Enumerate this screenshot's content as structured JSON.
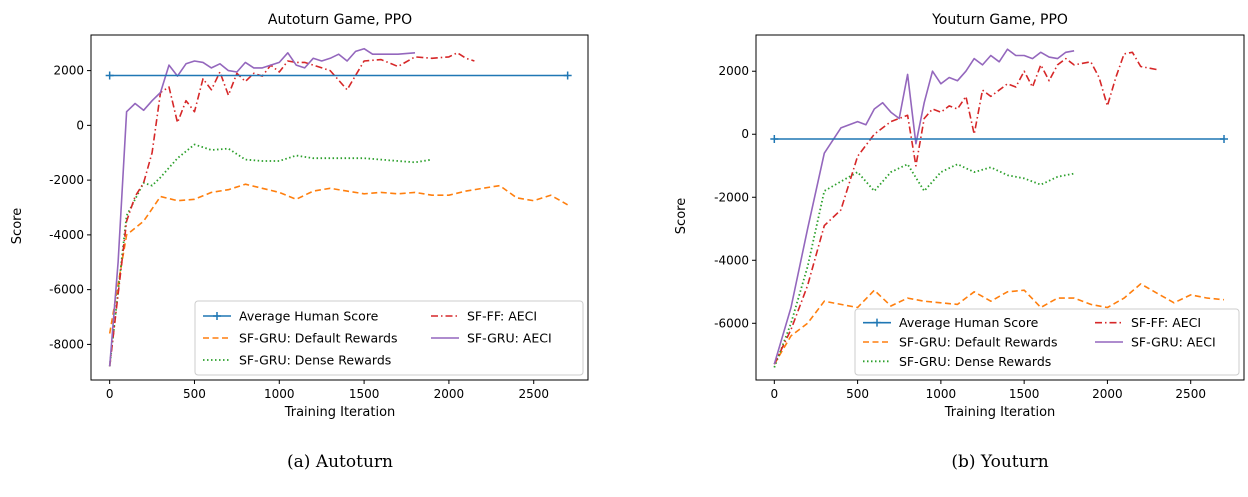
{
  "captions": [
    "(a) Autoturn",
    "(b) Youturn"
  ],
  "colors": {
    "Average Human Score": "#1f77b4",
    "SF-GRU: Default Rewards": "#ff7f0e",
    "SF-GRU: Dense Rewards": "#2ca02c",
    "SF-FF: AECI": "#d62728",
    "SF-GRU: AECI": "#9467bd"
  },
  "chart_data": [
    {
      "type": "line",
      "title": "Autoturn Game, PPO",
      "xlabel": "Training Iteration",
      "ylabel": "Score",
      "xlim": [
        -110,
        2820
      ],
      "ylim": [
        -9300,
        3300
      ],
      "xticks": [
        0,
        500,
        1000,
        1500,
        2000,
        2500
      ],
      "yticks": [
        -8000,
        -6000,
        -4000,
        -2000,
        0,
        2000
      ],
      "legend": {
        "placement": "lower-right",
        "columns": 2
      },
      "series": [
        {
          "name": "Average Human Score",
          "x": [
            0,
            2700
          ],
          "y": [
            1820,
            1820
          ]
        },
        {
          "name": "SF-GRU: Default Rewards",
          "x": [
            0,
            100,
            200,
            300,
            400,
            500,
            600,
            700,
            800,
            900,
            1000,
            1100,
            1200,
            1300,
            1400,
            1500,
            1600,
            1700,
            1800,
            1900,
            2000,
            2100,
            2200,
            2300,
            2400,
            2500,
            2600,
            2700
          ],
          "y": [
            -7600,
            -4000,
            -3500,
            -2600,
            -2750,
            -2700,
            -2450,
            -2350,
            -2150,
            -2300,
            -2450,
            -2700,
            -2400,
            -2300,
            -2400,
            -2500,
            -2450,
            -2500,
            -2450,
            -2550,
            -2550,
            -2400,
            -2300,
            -2200,
            -2650,
            -2750,
            -2550,
            -2900
          ]
        },
        {
          "name": "SF-GRU: Dense Rewards",
          "x": [
            0,
            100,
            200,
            250,
            300,
            400,
            500,
            600,
            700,
            800,
            900,
            1000,
            1100,
            1200,
            1300,
            1400,
            1500,
            1600,
            1700,
            1800,
            1900
          ],
          "y": [
            -8800,
            -3300,
            -2100,
            -2200,
            -1900,
            -1200,
            -700,
            -900,
            -850,
            -1250,
            -1300,
            -1300,
            -1100,
            -1200,
            -1200,
            -1200,
            -1200,
            -1250,
            -1300,
            -1350,
            -1250
          ]
        },
        {
          "name": "SF-FF: AECI",
          "x": [
            0,
            100,
            150,
            200,
            250,
            300,
            350,
            400,
            450,
            500,
            550,
            600,
            650,
            700,
            750,
            800,
            850,
            900,
            950,
            1000,
            1050,
            1100,
            1150,
            1200,
            1300,
            1400,
            1500,
            1600,
            1700,
            1800,
            1900,
            2000,
            2050,
            2100,
            2150
          ],
          "y": [
            -8800,
            -3500,
            -2600,
            -2100,
            -1000,
            1200,
            1400,
            100,
            900,
            500,
            1700,
            1300,
            1950,
            1100,
            1900,
            1600,
            1900,
            1800,
            2200,
            1950,
            2350,
            2300,
            2300,
            2200,
            2000,
            1300,
            2350,
            2400,
            2150,
            2500,
            2450,
            2500,
            2650,
            2450,
            2350
          ]
        },
        {
          "name": "SF-GRU: AECI",
          "x": [
            0,
            50,
            100,
            150,
            200,
            250,
            300,
            350,
            400,
            450,
            500,
            550,
            600,
            650,
            700,
            750,
            800,
            850,
            900,
            1000,
            1050,
            1100,
            1150,
            1200,
            1250,
            1300,
            1350,
            1400,
            1450,
            1500,
            1550,
            1600,
            1700,
            1800
          ],
          "y": [
            -8800,
            -5000,
            500,
            800,
            550,
            900,
            1200,
            2200,
            1800,
            2250,
            2350,
            2300,
            2100,
            2250,
            2000,
            1950,
            2300,
            2100,
            2100,
            2300,
            2650,
            2200,
            2100,
            2450,
            2350,
            2450,
            2600,
            2350,
            2700,
            2800,
            2600,
            2600,
            2600,
            2650
          ]
        }
      ]
    },
    {
      "type": "line",
      "title": "Youturn Game, PPO",
      "xlabel": "Training Iteration",
      "ylabel": "Score",
      "xlim": [
        -110,
        2820
      ],
      "ylim": [
        -7800,
        3150
      ],
      "xticks": [
        0,
        500,
        1000,
        1500,
        2000,
        2500
      ],
      "yticks": [
        -6000,
        -4000,
        -2000,
        0,
        2000
      ],
      "legend": {
        "placement": "lower-right",
        "columns": 2
      },
      "series": [
        {
          "name": "Average Human Score",
          "x": [
            0,
            2700
          ],
          "y": [
            -150,
            -150
          ]
        },
        {
          "name": "SF-GRU: Default Rewards",
          "x": [
            0,
            100,
            200,
            300,
            400,
            500,
            600,
            700,
            800,
            900,
            1000,
            1100,
            1200,
            1300,
            1400,
            1500,
            1600,
            1700,
            1800,
            1900,
            2000,
            2100,
            2200,
            2300,
            2400,
            2500,
            2600,
            2700
          ],
          "y": [
            -7300,
            -6400,
            -6000,
            -5300,
            -5400,
            -5500,
            -4950,
            -5450,
            -5200,
            -5300,
            -5350,
            -5400,
            -5000,
            -5300,
            -5000,
            -4950,
            -5500,
            -5200,
            -5200,
            -5400,
            -5500,
            -5200,
            -4750,
            -5050,
            -5350,
            -5100,
            -5200,
            -5250
          ]
        },
        {
          "name": "SF-GRU: Dense Rewards",
          "x": [
            0,
            100,
            200,
            300,
            400,
            500,
            600,
            700,
            800,
            900,
            1000,
            1100,
            1200,
            1300,
            1400,
            1500,
            1600,
            1700,
            1800
          ],
          "y": [
            -7400,
            -6000,
            -4200,
            -1800,
            -1500,
            -1200,
            -1800,
            -1200,
            -950,
            -1800,
            -1200,
            -950,
            -1200,
            -1050,
            -1300,
            -1400,
            -1600,
            -1350,
            -1250
          ]
        },
        {
          "name": "SF-FF: AECI",
          "x": [
            0,
            100,
            200,
            300,
            400,
            500,
            600,
            700,
            800,
            850,
            900,
            950,
            1000,
            1050,
            1100,
            1150,
            1200,
            1250,
            1300,
            1400,
            1450,
            1500,
            1550,
            1600,
            1650,
            1700,
            1750,
            1800,
            1900,
            1950,
            2000,
            2050,
            2100,
            2150,
            2200,
            2300
          ],
          "y": [
            -7300,
            -6200,
            -4800,
            -2900,
            -2400,
            -700,
            0,
            400,
            600,
            -1000,
            500,
            800,
            700,
            900,
            800,
            1200,
            0,
            1400,
            1200,
            1600,
            1500,
            2000,
            1500,
            2200,
            1700,
            2200,
            2400,
            2200,
            2300,
            1800,
            900,
            1800,
            2550,
            2600,
            2150,
            2050
          ]
        },
        {
          "name": "SF-GRU: AECI",
          "x": [
            0,
            100,
            200,
            300,
            400,
            500,
            550,
            600,
            650,
            700,
            750,
            800,
            850,
            900,
            950,
            1000,
            1050,
            1100,
            1150,
            1200,
            1250,
            1300,
            1350,
            1400,
            1450,
            1500,
            1550,
            1600,
            1650,
            1700,
            1750,
            1800
          ],
          "y": [
            -7300,
            -5500,
            -3000,
            -600,
            200,
            400,
            300,
            800,
            1000,
            700,
            500,
            1900,
            -300,
            1000,
            2000,
            1600,
            1800,
            1700,
            2000,
            2400,
            2200,
            2500,
            2300,
            2700,
            2500,
            2500,
            2400,
            2600,
            2450,
            2400,
            2600,
            2650
          ]
        }
      ]
    }
  ]
}
